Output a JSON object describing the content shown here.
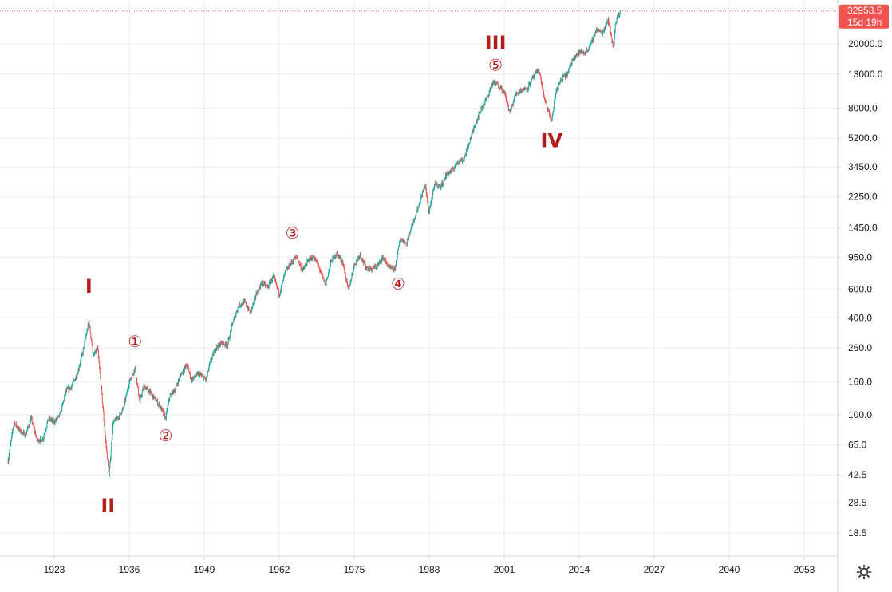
{
  "chart_data": {
    "type": "candlestick",
    "title": "",
    "xlabel": "",
    "ylabel": "",
    "y_scale": "log",
    "grid": true,
    "x_ticks": [
      "1923",
      "1936",
      "1949",
      "1962",
      "1975",
      "1988",
      "2001",
      "2014",
      "2027",
      "2040",
      "2053"
    ],
    "x_range": [
      1915,
      2058
    ],
    "y_ticks": [
      "20000.0",
      "13000.0",
      "8000.0",
      "5200.0",
      "3450.0",
      "2250.0",
      "1450.0",
      "950.0",
      "600.0",
      "400.0",
      "260.0",
      "160.0",
      "100.0",
      "65.0",
      "42.5",
      "28.5",
      "18.5"
    ],
    "y_range": [
      14,
      32000
    ],
    "price_path": [
      [
        1915.0,
        52
      ],
      [
        1916.0,
        90
      ],
      [
        1917.0,
        80
      ],
      [
        1918.0,
        75
      ],
      [
        1919.0,
        95
      ],
      [
        1920.0,
        70
      ],
      [
        1921.0,
        70
      ],
      [
        1922.0,
        95
      ],
      [
        1923.0,
        90
      ],
      [
        1924.0,
        100
      ],
      [
        1925.0,
        140
      ],
      [
        1926.0,
        150
      ],
      [
        1927.0,
        180
      ],
      [
        1928.0,
        250
      ],
      [
        1929.0,
        380
      ],
      [
        1929.8,
        230
      ],
      [
        1930.5,
        260
      ],
      [
        1931.2,
        140
      ],
      [
        1931.8,
        75
      ],
      [
        1932.5,
        42
      ],
      [
        1933.2,
        90
      ],
      [
        1934.0,
        95
      ],
      [
        1935.0,
        110
      ],
      [
        1936.0,
        160
      ],
      [
        1937.0,
        195
      ],
      [
        1937.8,
        120
      ],
      [
        1938.5,
        150
      ],
      [
        1939.5,
        140
      ],
      [
        1940.5,
        125
      ],
      [
        1941.5,
        110
      ],
      [
        1942.3,
        95
      ],
      [
        1943.0,
        130
      ],
      [
        1944.0,
        145
      ],
      [
        1945.0,
        180
      ],
      [
        1946.0,
        205
      ],
      [
        1946.8,
        165
      ],
      [
        1948.0,
        180
      ],
      [
        1949.3,
        165
      ],
      [
        1950.0,
        210
      ],
      [
        1951.0,
        260
      ],
      [
        1952.0,
        280
      ],
      [
        1953.0,
        270
      ],
      [
        1954.0,
        380
      ],
      [
        1955.0,
        480
      ],
      [
        1956.0,
        500
      ],
      [
        1957.0,
        430
      ],
      [
        1958.0,
        560
      ],
      [
        1959.0,
        660
      ],
      [
        1960.0,
        620
      ],
      [
        1961.0,
        720
      ],
      [
        1962.0,
        560
      ],
      [
        1963.0,
        760
      ],
      [
        1964.0,
        870
      ],
      [
        1965.0,
        960
      ],
      [
        1966.0,
        780
      ],
      [
        1967.0,
        900
      ],
      [
        1968.0,
        960
      ],
      [
        1969.0,
        800
      ],
      [
        1970.0,
        640
      ],
      [
        1971.0,
        900
      ],
      [
        1972.0,
        1010
      ],
      [
        1973.0,
        880
      ],
      [
        1974.0,
        590
      ],
      [
        1975.0,
        850
      ],
      [
        1976.0,
        990
      ],
      [
        1977.0,
        820
      ],
      [
        1978.0,
        800
      ],
      [
        1979.0,
        840
      ],
      [
        1980.0,
        950
      ],
      [
        1981.0,
        820
      ],
      [
        1982.0,
        790
      ],
      [
        1983.0,
        1250
      ],
      [
        1984.0,
        1150
      ],
      [
        1985.0,
        1500
      ],
      [
        1986.0,
        1900
      ],
      [
        1987.3,
        2700
      ],
      [
        1987.9,
        1800
      ],
      [
        1989.0,
        2700
      ],
      [
        1990.0,
        2600
      ],
      [
        1991.0,
        3100
      ],
      [
        1992.0,
        3300
      ],
      [
        1993.0,
        3750
      ],
      [
        1994.0,
        3850
      ],
      [
        1995.0,
        5000
      ],
      [
        1996.0,
        6400
      ],
      [
        1997.0,
        7900
      ],
      [
        1998.0,
        9200
      ],
      [
        1999.0,
        11500
      ],
      [
        2000.0,
        11200
      ],
      [
        2001.0,
        10000
      ],
      [
        2002.0,
        7500
      ],
      [
        2003.0,
        9800
      ],
      [
        2004.0,
        10400
      ],
      [
        2005.0,
        10600
      ],
      [
        2006.0,
        12400
      ],
      [
        2007.0,
        13900
      ],
      [
        2008.0,
        9000
      ],
      [
        2009.2,
        6600
      ],
      [
        2010.0,
        10300
      ],
      [
        2011.0,
        12200
      ],
      [
        2012.0,
        13100
      ],
      [
        2013.0,
        16500
      ],
      [
        2014.0,
        17800
      ],
      [
        2015.0,
        17500
      ],
      [
        2016.0,
        19800
      ],
      [
        2017.0,
        24700
      ],
      [
        2018.0,
        23300
      ],
      [
        2019.0,
        28500
      ],
      [
        2019.9,
        19000
      ],
      [
        2020.3,
        27000
      ],
      [
        2020.9,
        30500
      ],
      [
        2021.1,
        32000
      ]
    ],
    "wave_labels": [
      {
        "text": "I",
        "x": 1929.0,
        "y": 620,
        "kind": "major"
      },
      {
        "text": "II",
        "x": 1932.3,
        "y": 27,
        "kind": "major"
      },
      {
        "text": "①",
        "x": 1937.0,
        "y": 280,
        "kind": "minor"
      },
      {
        "text": "②",
        "x": 1942.3,
        "y": 73,
        "kind": "minor"
      },
      {
        "text": "③",
        "x": 1964.3,
        "y": 1320,
        "kind": "minor"
      },
      {
        "text": "④",
        "x": 1982.6,
        "y": 640,
        "kind": "minor"
      },
      {
        "text": "III",
        "x": 1999.5,
        "y": 20000,
        "kind": "major"
      },
      {
        "text": "⑤",
        "x": 1999.5,
        "y": 14500,
        "kind": "minor"
      },
      {
        "text": "IV",
        "x": 2009.2,
        "y": 4950,
        "kind": "major"
      }
    ],
    "colors": {
      "up": "#26a69a",
      "down": "#ef5350",
      "labels": "#b71c1c",
      "grid": "#e8eef5",
      "price_tag": "#ef5350",
      "price_line": "#ef5350"
    },
    "last_price_label": "32953.5",
    "countdown_label": "15d 19h"
  },
  "controls": {
    "settings_icon": "gear-icon"
  }
}
